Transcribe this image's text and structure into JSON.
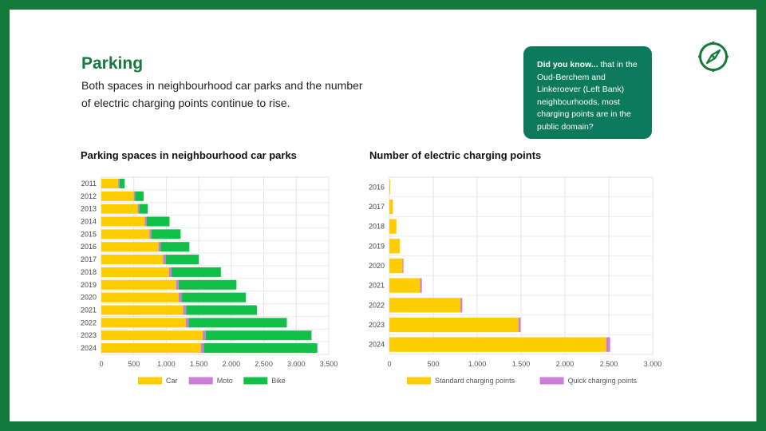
{
  "header": {
    "title": "Parking",
    "subtitle": "Both spaces in neighbourhood car parks and the number of electric charging points continue to rise."
  },
  "callout": {
    "lead": "Did you know...",
    "text": " that in the Oud-Berchem and Linkeroever (Left Bank) neighbourhoods, most charging points are in the public domain?"
  },
  "icons": {
    "corner": "compass-icon"
  },
  "colors": {
    "frame": "#137a3b",
    "title": "#137a3b",
    "callout_bg": "#0e7a5c",
    "car": "#ffcc00",
    "moto": "#c87fd4",
    "bike": "#12c049",
    "standard": "#ffcc00",
    "quick": "#c87fd4"
  },
  "chart_data": [
    {
      "type": "bar",
      "orientation": "horizontal",
      "stacked": true,
      "title": "Parking spaces in neighbourhood car parks",
      "categories": [
        "2011",
        "2012",
        "2013",
        "2014",
        "2015",
        "2016",
        "2017",
        "2018",
        "2019",
        "2020",
        "2021",
        "2022",
        "2023",
        "2024"
      ],
      "series": [
        {
          "name": "Car",
          "values": [
            260,
            500,
            560,
            670,
            740,
            880,
            950,
            1040,
            1150,
            1190,
            1260,
            1300,
            1560,
            1530
          ]
        },
        {
          "name": "Moto",
          "values": [
            20,
            20,
            25,
            30,
            30,
            35,
            40,
            40,
            40,
            45,
            45,
            45,
            45,
            45
          ]
        },
        {
          "name": "Bike",
          "values": [
            80,
            130,
            130,
            350,
            450,
            440,
            510,
            760,
            890,
            990,
            1090,
            1510,
            1630,
            1750
          ]
        }
      ],
      "xlim": [
        0,
        3500
      ],
      "xticks": [
        0,
        500,
        1000,
        1500,
        2000,
        2500,
        3000,
        3500
      ],
      "xtick_labels": [
        "0",
        "500",
        "1.000",
        "1.500",
        "2.000",
        "2.500",
        "3.000",
        "3.500"
      ],
      "grid": true,
      "legend": "bottom"
    },
    {
      "type": "bar",
      "orientation": "horizontal",
      "stacked": true,
      "title": "Number of electric charging points",
      "categories": [
        "2016",
        "2017",
        "2018",
        "2019",
        "2020",
        "2021",
        "2022",
        "2023",
        "2024"
      ],
      "series": [
        {
          "name": "Standard charging points",
          "values": [
            10,
            40,
            80,
            120,
            150,
            350,
            810,
            1470,
            2470
          ]
        },
        {
          "name": "Quick charging points",
          "values": [
            0,
            0,
            0,
            0,
            10,
            20,
            20,
            25,
            45
          ]
        }
      ],
      "xlim": [
        0,
        3000
      ],
      "xticks": [
        0,
        500,
        1000,
        1500,
        2000,
        2500,
        3000
      ],
      "xtick_labels": [
        "0",
        "500",
        "1.000",
        "1.500",
        "2.000",
        "2.500",
        "3.000"
      ],
      "grid": true,
      "legend": "bottom"
    }
  ]
}
